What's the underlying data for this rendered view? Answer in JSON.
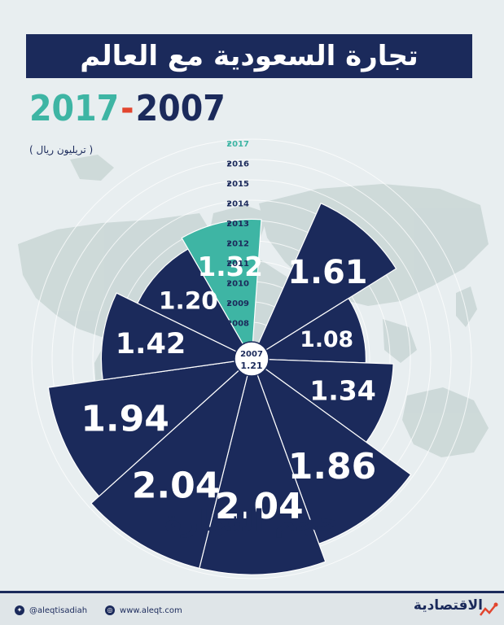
{
  "header": {
    "title": "تجارة السعودية مع العالم",
    "year_end": "2017",
    "year_sep": "-",
    "year_start": "2007",
    "unit": "( تريليون ريال )"
  },
  "bottom_title": "حجم التجارة",
  "footer": {
    "twitter_handle": "@aleqtisadiah",
    "website": "www.aleqt.com",
    "brand": "الاقتصادية"
  },
  "colors": {
    "navy": "#1b2a5b",
    "teal": "#3eb5a4",
    "accent": "#e2452e",
    "background": "#e8eef0",
    "map": "#c9d6d5"
  },
  "chart_data": {
    "type": "polar-area",
    "title": "تجارة السعودية مع العالم",
    "unit": "تريليون ريال",
    "center_label": {
      "year": "2007",
      "value": "1.21"
    },
    "categories": [
      "2008",
      "2009",
      "2010",
      "2011",
      "2012",
      "2013",
      "2014",
      "2015",
      "2016",
      "2017"
    ],
    "year_labels": [
      "2017",
      "2016",
      "2015",
      "2014",
      "2013",
      "2012",
      "2011",
      "2010",
      "2009",
      "2008"
    ],
    "values": [
      1.61,
      1.08,
      1.34,
      1.86,
      2.04,
      2.04,
      1.94,
      1.42,
      1.2,
      1.32
    ],
    "value_labels": [
      "1.61",
      "1.08",
      "1.34",
      "1.86",
      "2.04",
      "2.04",
      "1.94",
      "1.42",
      "1.20",
      "1.32"
    ],
    "highlight": "2017",
    "grid": true
  }
}
